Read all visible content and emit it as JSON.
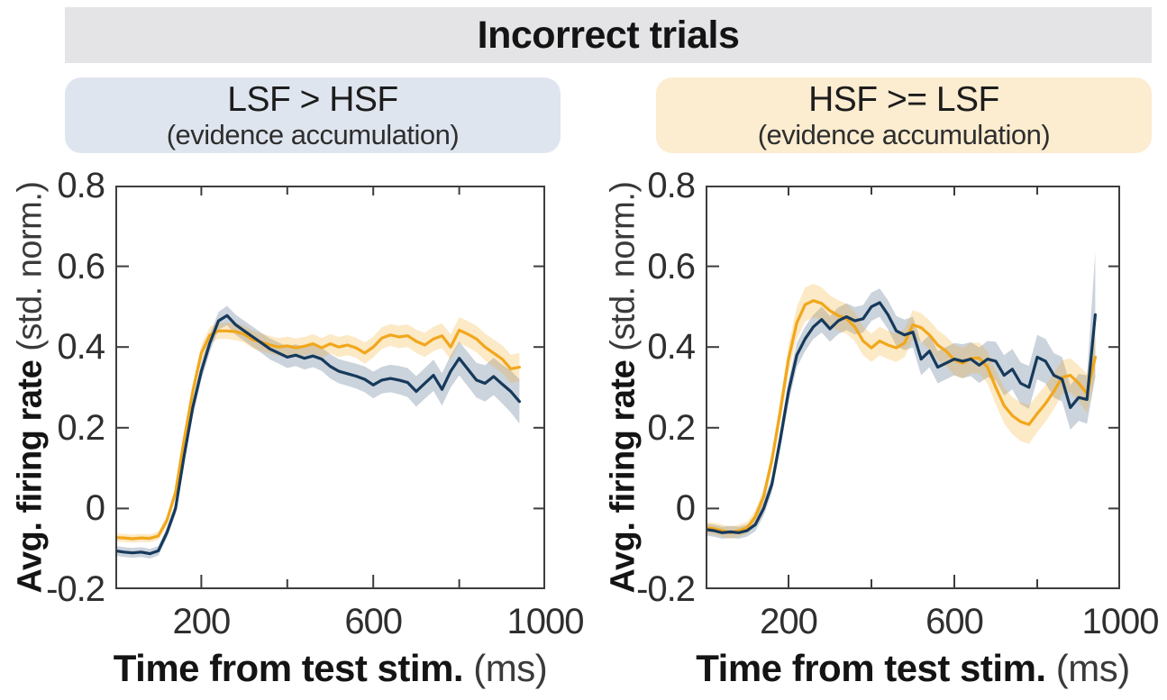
{
  "header": {
    "title": "Incorrect trials",
    "bg": "#e4e4e7"
  },
  "conditions": [
    {
      "title": "LSF > HSF",
      "subtitle": "(evidence accumulation)",
      "bg": "#dfe5ef"
    },
    {
      "title": "HSF >= LSF",
      "subtitle": "(evidence accumulation)",
      "bg": "#fcecd0"
    }
  ],
  "chart_data": [
    {
      "type": "line",
      "title": "LSF > HSF (evidence accumulation)",
      "xlabel_main": "Time from test stim.",
      "xlabel_unit": " (ms)",
      "ylabel_main": "Avg. firing rate ",
      "ylabel_unit": "(std. norm.)",
      "xlim": [
        0,
        1000
      ],
      "ylim": [
        -0.2,
        0.8
      ],
      "x_tick_values": [
        200,
        600,
        1000
      ],
      "x_tick_labels": [
        "200",
        "600",
        "1000"
      ],
      "x_ticks_minor": [
        400,
        800
      ],
      "y_tick_values": [
        0.8,
        0.6,
        0.4,
        0.2,
        0,
        -0.2
      ],
      "y_tick_labels": [
        "0.8",
        "0.6",
        "0.4",
        "0.2",
        "0",
        "-0.2"
      ],
      "axis_color": "#3d3d3d",
      "grid": false,
      "legend": "none",
      "x": [
        0,
        20,
        40,
        60,
        80,
        100,
        120,
        140,
        160,
        180,
        200,
        220,
        240,
        260,
        280,
        300,
        320,
        340,
        360,
        380,
        400,
        420,
        440,
        460,
        480,
        500,
        520,
        540,
        560,
        580,
        600,
        620,
        640,
        660,
        680,
        700,
        720,
        740,
        760,
        780,
        800,
        820,
        840,
        860,
        880,
        900,
        920,
        940
      ],
      "series": [
        {
          "name": "dark-navy-trace",
          "color": "#16395b",
          "band_color": "rgba(84,110,138,0.30)",
          "mean": [
            -0.105,
            -0.108,
            -0.11,
            -0.108,
            -0.112,
            -0.105,
            -0.06,
            0.0,
            0.13,
            0.25,
            0.34,
            0.41,
            0.465,
            0.478,
            0.455,
            0.44,
            0.425,
            0.41,
            0.395,
            0.385,
            0.375,
            0.38,
            0.372,
            0.378,
            0.37,
            0.352,
            0.34,
            0.334,
            0.328,
            0.32,
            0.306,
            0.318,
            0.322,
            0.318,
            0.312,
            0.29,
            0.31,
            0.33,
            0.295,
            0.34,
            0.372,
            0.345,
            0.318,
            0.31,
            0.327,
            0.308,
            0.29,
            0.265
          ],
          "sem": [
            0.012,
            0.012,
            0.012,
            0.012,
            0.012,
            0.012,
            0.013,
            0.015,
            0.018,
            0.02,
            0.022,
            0.022,
            0.022,
            0.024,
            0.025,
            0.025,
            0.025,
            0.025,
            0.026,
            0.026,
            0.027,
            0.027,
            0.028,
            0.028,
            0.029,
            0.03,
            0.03,
            0.03,
            0.031,
            0.032,
            0.033,
            0.033,
            0.034,
            0.035,
            0.036,
            0.038,
            0.038,
            0.039,
            0.04,
            0.04,
            0.042,
            0.042,
            0.043,
            0.045,
            0.046,
            0.048,
            0.052,
            0.055
          ]
        },
        {
          "name": "gold-trace",
          "color": "#f1a71b",
          "band_color": "rgba(242,169,28,0.25)",
          "mean": [
            -0.072,
            -0.073,
            -0.075,
            -0.073,
            -0.074,
            -0.068,
            -0.03,
            0.04,
            0.17,
            0.29,
            0.385,
            0.43,
            0.44,
            0.44,
            0.438,
            0.432,
            0.418,
            0.412,
            0.405,
            0.4,
            0.403,
            0.398,
            0.402,
            0.408,
            0.398,
            0.408,
            0.4,
            0.405,
            0.398,
            0.385,
            0.4,
            0.422,
            0.43,
            0.425,
            0.428,
            0.414,
            0.405,
            0.42,
            0.428,
            0.4,
            0.442,
            0.432,
            0.42,
            0.4,
            0.385,
            0.37,
            0.346,
            0.35
          ],
          "sem": [
            0.01,
            0.01,
            0.01,
            0.01,
            0.01,
            0.01,
            0.012,
            0.014,
            0.016,
            0.018,
            0.02,
            0.02,
            0.02,
            0.02,
            0.021,
            0.021,
            0.022,
            0.022,
            0.022,
            0.022,
            0.023,
            0.023,
            0.023,
            0.024,
            0.024,
            0.024,
            0.025,
            0.025,
            0.025,
            0.026,
            0.026,
            0.027,
            0.027,
            0.028,
            0.028,
            0.029,
            0.03,
            0.03,
            0.031,
            0.031,
            0.032,
            0.032,
            0.033,
            0.033,
            0.034,
            0.034,
            0.035,
            0.035
          ]
        }
      ]
    },
    {
      "type": "line",
      "title": "HSF >= LSF (evidence accumulation)",
      "xlabel_main": "Time from test stim.",
      "xlabel_unit": " (ms)",
      "ylabel_main": "Avg. firing rate ",
      "ylabel_unit": "(std. norm.)",
      "xlim": [
        0,
        1000
      ],
      "ylim": [
        -0.2,
        0.8
      ],
      "x_tick_values": [
        200,
        600,
        1000
      ],
      "x_tick_labels": [
        "200",
        "600",
        "1000"
      ],
      "x_ticks_minor": [
        400,
        800
      ],
      "y_tick_values": [
        0.8,
        0.6,
        0.4,
        0.2,
        0,
        -0.2
      ],
      "y_tick_labels": [
        "0.8",
        "0.6",
        "0.4",
        "0.2",
        "0",
        "-0.2"
      ],
      "axis_color": "#3d3d3d",
      "grid": false,
      "legend": "none",
      "x": [
        0,
        20,
        40,
        60,
        80,
        100,
        120,
        140,
        160,
        180,
        200,
        220,
        240,
        260,
        280,
        300,
        320,
        340,
        360,
        380,
        400,
        420,
        440,
        460,
        480,
        500,
        520,
        540,
        560,
        580,
        600,
        620,
        640,
        660,
        680,
        700,
        720,
        740,
        760,
        780,
        800,
        820,
        840,
        860,
        880,
        900,
        920,
        940
      ],
      "series": [
        {
          "name": "dark-navy-trace",
          "color": "#16395b",
          "band_color": "rgba(84,110,138,0.30)",
          "mean": [
            -0.052,
            -0.055,
            -0.06,
            -0.058,
            -0.06,
            -0.055,
            -0.04,
            0.0,
            0.06,
            0.17,
            0.29,
            0.38,
            0.42,
            0.45,
            0.468,
            0.445,
            0.465,
            0.475,
            0.465,
            0.47,
            0.5,
            0.51,
            0.48,
            0.44,
            0.43,
            0.437,
            0.37,
            0.39,
            0.35,
            0.36,
            0.37,
            0.365,
            0.37,
            0.355,
            0.37,
            0.365,
            0.33,
            0.345,
            0.31,
            0.3,
            0.375,
            0.365,
            0.33,
            0.32,
            0.25,
            0.275,
            0.27,
            0.48
          ],
          "sem": [
            0.015,
            0.015,
            0.015,
            0.015,
            0.015,
            0.015,
            0.016,
            0.018,
            0.02,
            0.025,
            0.028,
            0.03,
            0.03,
            0.03,
            0.032,
            0.032,
            0.033,
            0.033,
            0.034,
            0.034,
            0.035,
            0.035,
            0.036,
            0.037,
            0.038,
            0.038,
            0.04,
            0.04,
            0.04,
            0.04,
            0.04,
            0.042,
            0.042,
            0.044,
            0.045,
            0.048,
            0.05,
            0.05,
            0.052,
            0.053,
            0.055,
            0.055,
            0.055,
            0.055,
            0.055,
            0.058,
            0.06,
            0.155
          ]
        },
        {
          "name": "gold-trace",
          "color": "#f1a71b",
          "band_color": "rgba(242,169,28,0.25)",
          "mean": [
            -0.048,
            -0.05,
            -0.055,
            -0.06,
            -0.055,
            -0.048,
            -0.02,
            0.03,
            0.12,
            0.24,
            0.37,
            0.46,
            0.505,
            0.515,
            0.508,
            0.49,
            0.478,
            0.47,
            0.45,
            0.415,
            0.398,
            0.415,
            0.405,
            0.398,
            0.41,
            0.455,
            0.448,
            0.43,
            0.405,
            0.39,
            0.368,
            0.36,
            0.372,
            0.373,
            0.35,
            0.3,
            0.255,
            0.23,
            0.215,
            0.208,
            0.235,
            0.26,
            0.29,
            0.325,
            0.33,
            0.31,
            0.285,
            0.375
          ],
          "sem": [
            0.015,
            0.015,
            0.015,
            0.015,
            0.015,
            0.015,
            0.016,
            0.018,
            0.022,
            0.028,
            0.035,
            0.04,
            0.042,
            0.042,
            0.04,
            0.038,
            0.038,
            0.037,
            0.036,
            0.035,
            0.035,
            0.035,
            0.035,
            0.035,
            0.035,
            0.036,
            0.036,
            0.036,
            0.037,
            0.037,
            0.038,
            0.038,
            0.038,
            0.038,
            0.04,
            0.042,
            0.044,
            0.046,
            0.048,
            0.048,
            0.046,
            0.045,
            0.044,
            0.042,
            0.042,
            0.044,
            0.048,
            0.05
          ]
        }
      ]
    }
  ]
}
